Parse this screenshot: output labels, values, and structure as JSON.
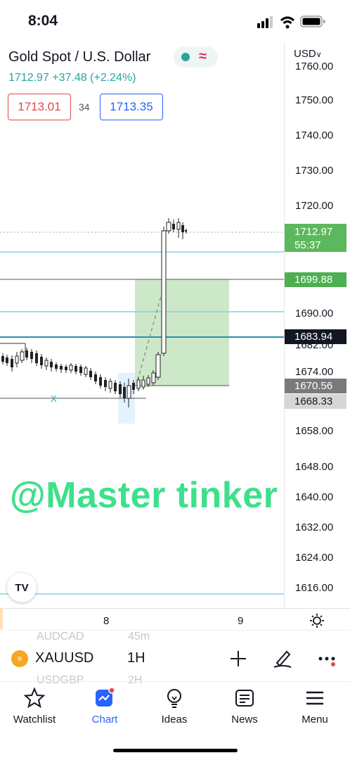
{
  "status_bar": {
    "time": "8:04"
  },
  "header": {
    "title": "Gold Spot / U.S. Dollar",
    "currency": "USD",
    "last_price": "1712.97",
    "change": "+37.48",
    "change_pct": "(+2.24%)",
    "bid": "1713.01",
    "spread": "34",
    "ask": "1713.35"
  },
  "price_axis": {
    "ticks": [
      "1760.00",
      "1750.00",
      "1740.00",
      "1730.00",
      "1720.00",
      "1690.00",
      "1682.00",
      "1674.00",
      "1658.00",
      "1648.00",
      "1640.00",
      "1632.00",
      "1624.00",
      "1616.00"
    ],
    "last_price_tag": "1712.97",
    "countdown": "55:37",
    "target_tag": "1699.88",
    "line_tag": "1683.94",
    "entry_tag": "1670.56",
    "stop_tag": "1668.33"
  },
  "time_axis": {
    "labels": [
      "8",
      "9"
    ]
  },
  "watermark": "@Master tinker",
  "chart_overlay": {
    "x_marker": "X"
  },
  "toolbar": {
    "ghost_top": [
      "AUDCAD",
      "45m"
    ],
    "ghost_bottom": [
      "USDGBP",
      "2H"
    ],
    "symbol": "XAUUSD",
    "interval": "1H"
  },
  "nav": [
    {
      "label": "Watchlist"
    },
    {
      "label": "Chart"
    },
    {
      "label": "Ideas"
    },
    {
      "label": "News"
    },
    {
      "label": "Menu"
    }
  ],
  "colors": {
    "up": "#26a69a",
    "down": "#e04848",
    "accent": "#2962ff",
    "target_green": "#4caf50",
    "watermark": "#3ee08a"
  }
}
